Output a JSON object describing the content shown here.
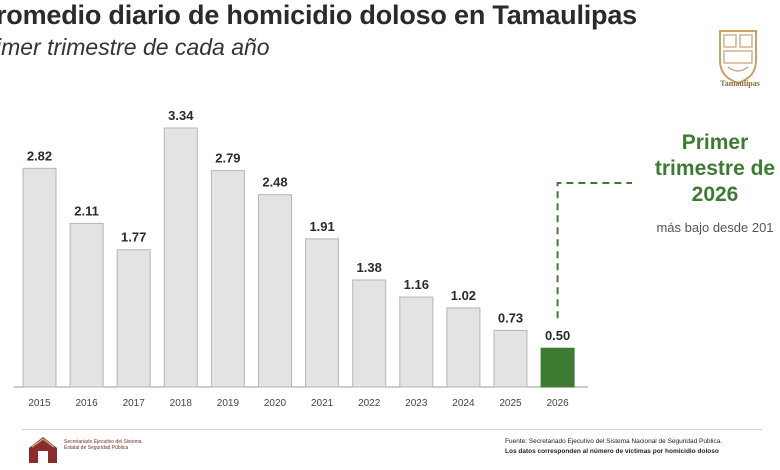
{
  "header": {
    "title": "romedio diario de homicidio doloso en Tamaulipas",
    "subtitle": "imer trimestre de cada año"
  },
  "logo_top": {
    "name": "Tamaulipas",
    "icon": "state-coat-of-arms-icon"
  },
  "callout": {
    "title": "Primer trimestre de 2026",
    "subtitle": "más bajo desde 201",
    "color": "#3f7a33"
  },
  "footer": {
    "org": "Secretariado Ejecutivo del Sistema Estatal de Seguridad Pública",
    "source": "Fuente: Secretariado Ejecutivo del Sistema Nacional de Seguridad Pública.",
    "note": "Los datos corresponden al número de víctimas por homicidio doloso"
  },
  "chart_data": {
    "type": "bar",
    "categories": [
      "2015",
      "2016",
      "2017",
      "2018",
      "2019",
      "2020",
      "2021",
      "2022",
      "2023",
      "2024",
      "2025",
      "2026"
    ],
    "values": [
      2.82,
      2.11,
      1.77,
      3.34,
      2.79,
      2.48,
      1.91,
      1.38,
      1.16,
      1.02,
      0.73,
      0.5
    ],
    "value_labels": [
      "2.82",
      "2.11",
      "1.77",
      "3.34",
      "2.79",
      "2.48",
      "1.91",
      "1.38",
      "1.16",
      "1.02",
      "0.73",
      "0.50"
    ],
    "title": "",
    "xlabel": "",
    "ylabel": "",
    "ylim": [
      0,
      3.34
    ],
    "grid": false,
    "bar_color": "#e3e3e3",
    "bar_stroke": "#b5b5b5",
    "highlight_category": "2026",
    "highlight_color": "#3f7a33"
  }
}
